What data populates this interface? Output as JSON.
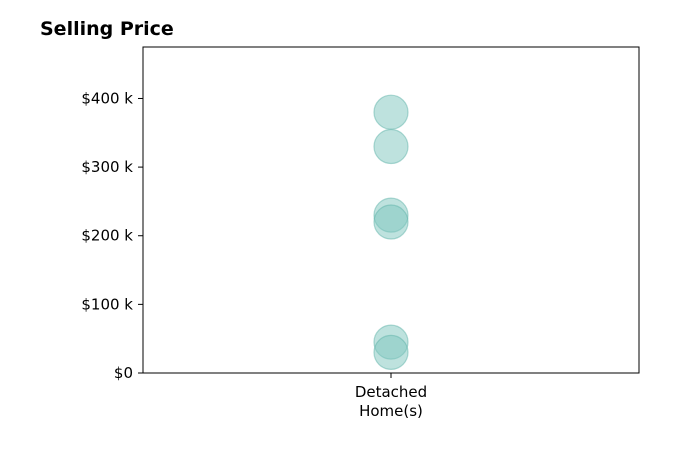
{
  "chart_data": {
    "type": "scatter",
    "title": "Selling Price",
    "xlabel": "",
    "ylabel": "",
    "categories": [
      [
        "Detached",
        "Home(s)"
      ]
    ],
    "y_ticks": [
      0,
      100000,
      200000,
      300000,
      400000
    ],
    "y_tick_labels": [
      "$0",
      "$100 k",
      "$200 k",
      "$300 k",
      "$400 k"
    ],
    "ylim": [
      0,
      475000
    ],
    "grid": false,
    "series": [
      {
        "category_index": 0,
        "values": [
          380000,
          330000,
          230000,
          220000,
          45000,
          30000
        ]
      }
    ],
    "marker_color": "#7ec6be",
    "marker_edge_color": "#5fb3a9",
    "marker_opacity": 0.5
  }
}
